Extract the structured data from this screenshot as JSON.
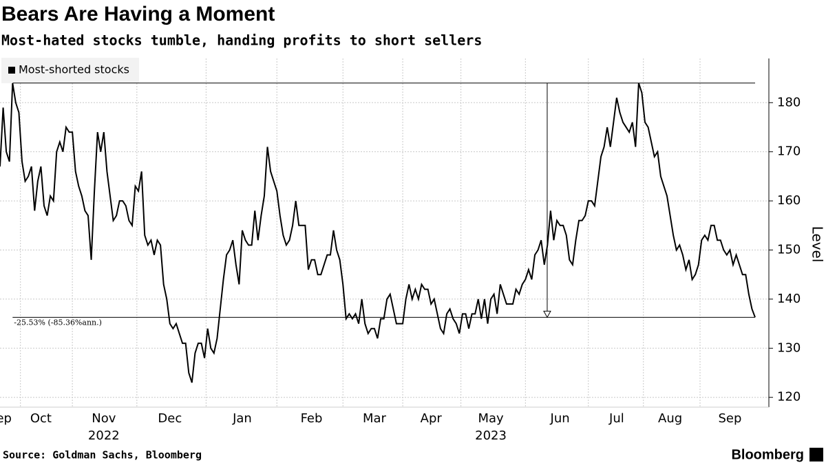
{
  "chart_data": {
    "type": "line",
    "title": "Bears Are Having a Moment",
    "subtitle": "Most-hated stocks tumble, handing profits to short sellers",
    "y_label": "Level",
    "source": "Source: Goldman Sachs, Bloomberg",
    "brand": "Bloomberg",
    "categories": [
      "Sep",
      null,
      null,
      null,
      null,
      null,
      null,
      null,
      null,
      null,
      null,
      null,
      null,
      "Oct",
      null,
      null,
      null,
      null,
      null,
      null,
      null,
      null,
      null,
      null,
      null,
      null,
      null,
      null,
      null,
      null,
      null,
      null,
      null,
      "Nov",
      null,
      null,
      null,
      null,
      null,
      null,
      null,
      null,
      null,
      null,
      null,
      null,
      null,
      null,
      null,
      null,
      null,
      null,
      null,
      null,
      "Dec",
      null,
      null,
      null,
      null,
      null,
      null,
      null,
      null,
      null,
      null,
      null,
      null,
      null,
      null,
      null,
      null,
      null,
      null,
      null,
      null,
      null,
      null,
      "Jan",
      null,
      null,
      null,
      null,
      null,
      null,
      null,
      null,
      null,
      null,
      null,
      null,
      null,
      null,
      null,
      null,
      null,
      null,
      null,
      null,
      null,
      "Feb",
      null,
      null,
      null,
      null,
      null,
      null,
      null,
      null,
      null,
      null,
      null,
      null,
      null,
      null,
      null,
      null,
      null,
      null,
      null,
      "Mar",
      null,
      null,
      null,
      null,
      null,
      null,
      null,
      null,
      null,
      null,
      null,
      null,
      null,
      null,
      null,
      null,
      null,
      "Apr",
      null,
      null,
      null,
      null,
      null,
      null,
      null,
      null,
      null,
      null,
      null,
      null,
      null,
      null,
      null,
      null,
      null,
      null,
      "May",
      null,
      null,
      null,
      null,
      null,
      null,
      null,
      null,
      null,
      null,
      null,
      null,
      null,
      null,
      null,
      null,
      null,
      null,
      null,
      null,
      null,
      "Jun",
      null,
      null,
      null,
      null,
      null,
      null,
      null,
      null,
      null,
      null,
      null,
      null,
      null,
      null,
      null,
      null,
      null,
      "Jul",
      null,
      null,
      null,
      null,
      null,
      null,
      null,
      null,
      null,
      null,
      null,
      null,
      null,
      null,
      null,
      null,
      "Aug",
      null,
      null,
      null,
      null,
      null,
      null,
      null,
      null,
      null,
      null,
      null,
      null,
      null,
      null,
      null,
      null,
      null,
      null,
      "Sep",
      null,
      null,
      null,
      null,
      null,
      null,
      null,
      null
    ],
    "category_years": [
      null,
      null,
      null,
      null,
      null,
      null,
      null,
      null,
      null,
      null,
      null,
      null,
      null,
      null,
      null,
      null,
      null,
      null,
      null,
      null,
      null,
      null,
      null,
      null,
      null,
      null,
      null,
      null,
      null,
      null,
      null,
      null,
      null,
      "2022",
      null,
      null,
      null,
      null,
      null,
      null,
      null,
      null,
      null,
      null,
      null,
      null,
      null,
      null,
      null,
      null,
      null,
      null,
      null,
      null,
      null,
      null,
      null,
      null,
      null,
      null,
      null,
      null,
      null,
      null,
      null,
      null,
      null,
      null,
      null,
      null,
      null,
      null,
      null,
      null,
      null,
      null,
      null,
      null,
      null,
      null,
      null,
      null,
      null,
      null,
      null,
      null,
      null,
      null,
      null,
      null,
      null,
      null,
      null,
      null,
      null,
      null,
      null,
      null,
      null,
      null,
      null,
      null,
      null,
      null,
      null,
      null,
      null,
      null,
      null,
      null,
      null,
      null,
      null,
      null,
      null,
      null,
      null,
      null,
      null,
      null,
      null,
      null,
      null,
      null,
      null,
      null,
      null,
      null,
      null,
      null,
      null,
      null,
      null,
      null,
      null,
      null,
      null,
      null,
      null,
      null,
      null,
      null,
      null,
      null,
      null,
      null,
      null,
      null,
      null,
      null,
      null,
      null,
      null,
      null,
      null,
      null,
      "2023",
      null,
      null,
      null,
      null,
      null,
      null,
      null,
      null,
      null,
      null,
      null,
      null,
      null,
      null,
      null,
      null,
      null,
      null,
      null,
      null,
      null,
      null,
      null,
      null,
      null,
      null,
      null,
      null,
      null,
      null,
      null,
      null,
      null,
      null,
      null,
      null,
      null,
      null,
      null,
      null,
      null,
      null,
      null,
      null,
      null,
      null,
      null,
      null,
      null,
      null,
      null,
      null,
      null,
      null,
      null,
      null,
      null,
      null,
      null,
      null,
      null,
      null,
      null,
      null,
      null,
      null,
      null,
      null,
      null,
      null,
      null,
      null,
      null,
      null,
      null,
      null,
      null,
      null,
      null,
      null,
      null,
      null,
      null,
      null
    ],
    "series": [
      {
        "name": "Most-shorted stocks",
        "color": "#000000",
        "values": [
          167,
          179,
          170,
          168,
          184,
          180,
          178,
          168,
          164,
          165,
          167,
          158,
          164,
          167,
          159,
          157,
          161,
          160,
          170,
          172,
          170,
          175,
          174,
          174,
          166,
          163,
          161,
          158,
          157,
          148,
          162,
          174,
          170,
          174,
          166,
          161,
          156,
          157,
          160,
          160,
          159,
          156,
          155,
          163,
          162,
          166,
          153,
          151,
          152,
          149,
          152,
          151,
          143,
          140,
          135,
          134,
          135,
          133,
          131,
          131,
          125,
          123,
          129,
          131,
          131,
          128,
          134,
          130,
          129,
          132,
          138,
          144,
          149,
          150,
          152,
          147,
          143,
          154,
          152,
          151,
          151,
          158,
          152,
          157,
          161,
          171,
          166,
          164,
          162,
          157,
          153,
          151,
          152,
          155,
          160,
          155,
          155,
          155,
          146,
          148,
          148,
          145,
          145,
          147,
          149,
          149,
          154,
          150,
          148,
          143,
          136,
          137,
          136,
          137,
          135,
          140,
          135,
          133,
          134,
          134,
          132,
          136,
          136,
          140,
          141,
          138,
          135,
          135,
          135,
          140,
          143,
          140,
          142,
          140,
          143,
          142,
          142,
          139,
          140,
          137,
          134,
          133,
          137,
          138,
          136,
          135,
          133,
          137,
          137,
          134,
          137,
          137,
          140,
          136,
          140,
          135,
          140,
          141,
          137,
          143,
          141,
          139,
          139,
          139,
          142,
          141,
          143,
          144,
          146,
          144,
          149,
          150,
          152,
          147,
          151,
          158,
          152,
          156,
          155,
          155,
          153,
          148,
          147,
          152,
          156,
          156,
          157,
          160,
          160,
          159,
          164,
          169,
          171,
          175,
          171,
          176,
          181,
          178,
          176,
          175,
          174,
          176,
          171,
          184,
          182,
          176,
          175,
          172,
          169,
          170,
          165,
          163,
          161,
          157,
          153,
          150,
          151,
          149,
          146,
          148,
          144,
          145,
          147,
          152,
          153,
          152,
          155,
          155,
          152,
          152,
          150,
          149,
          150,
          147,
          149,
          147,
          145,
          145,
          141,
          138,
          136.3
        ]
      }
    ],
    "ylim": [
      118,
      189
    ],
    "yticks": [
      120,
      130,
      140,
      150,
      160,
      170,
      180
    ],
    "grid": true,
    "legend": "top-left",
    "annotation": {
      "text": "-25.53% (-85.36%ann.)"
    }
  }
}
